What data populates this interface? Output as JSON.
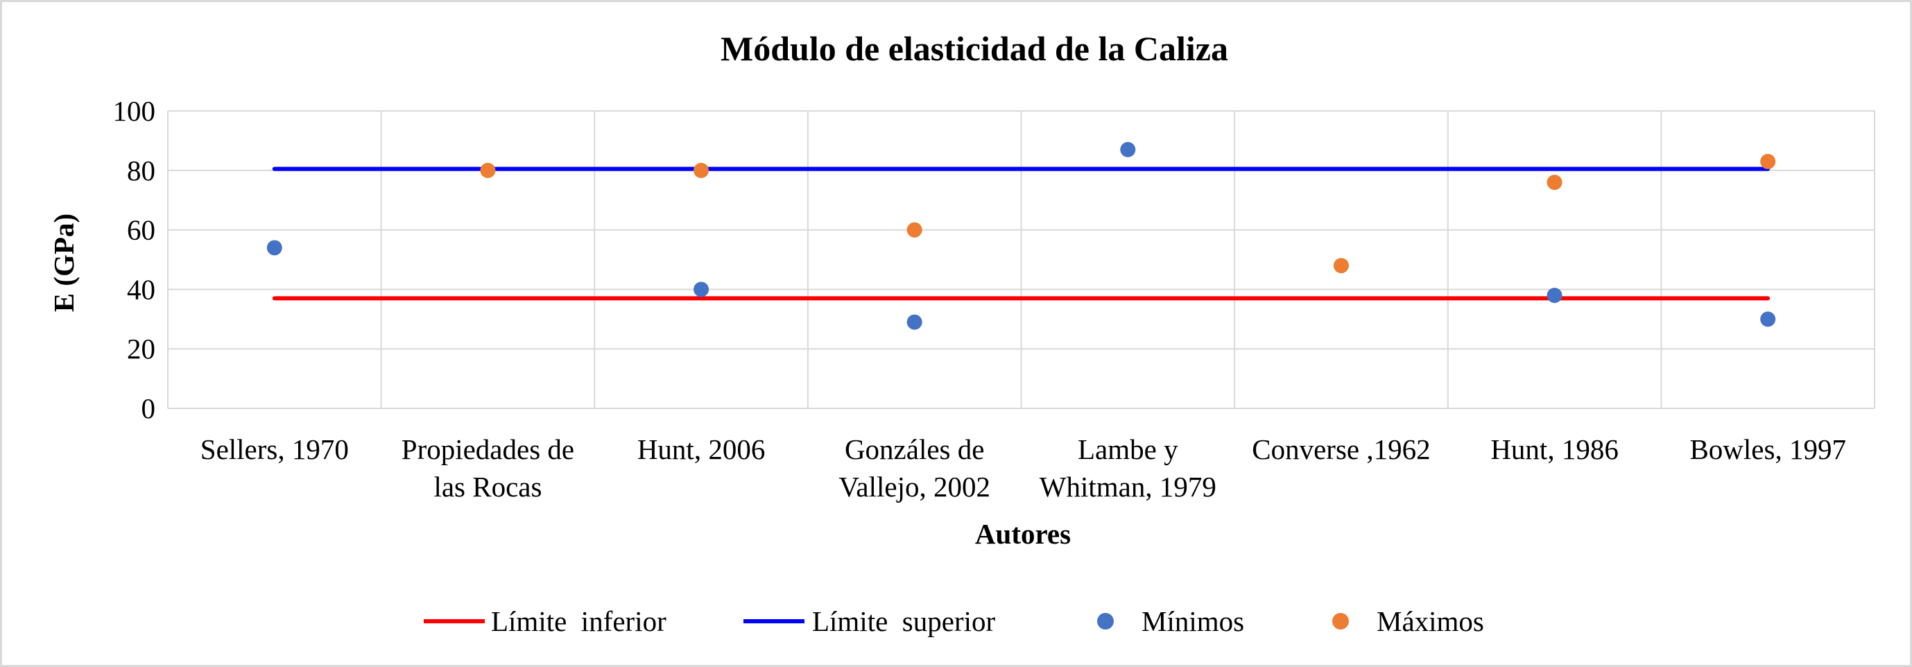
{
  "chart_data": {
    "type": "scatter",
    "title": "Módulo de elasticidad de la Caliza",
    "xlabel": "Autores",
    "ylabel": "E (GPa)",
    "ylim": [
      0,
      100
    ],
    "yticks": [
      "0",
      "20",
      "40",
      "60",
      "80",
      "100"
    ],
    "grid": true,
    "legend_position": "bottom",
    "categories": [
      [
        "Sellers, 1970"
      ],
      [
        "Propiedades de",
        "las Rocas"
      ],
      [
        "Hunt, 2006"
      ],
      [
        "Gonzáles de",
        "Vallejo, 2002"
      ],
      [
        "Lambe y",
        "Whitman, 1979"
      ],
      [
        "Converse ,1962"
      ],
      [
        "Hunt, 1986"
      ],
      [
        "Bowles, 1997"
      ]
    ],
    "series": [
      {
        "name": "Límite  inferior",
        "kind": "line",
        "color": "#ff0000",
        "x_range": [
          1,
          8
        ],
        "value": 37
      },
      {
        "name": "Límite  superior",
        "kind": "line",
        "color": "#0000ff",
        "x_range": [
          1,
          8
        ],
        "value": 80.5
      },
      {
        "name": "Mínimos",
        "kind": "points",
        "color": "#4472c4",
        "points": [
          {
            "x": 1,
            "y": 54
          },
          {
            "x": 3,
            "y": 40
          },
          {
            "x": 4,
            "y": 29
          },
          {
            "x": 5,
            "y": 87
          },
          {
            "x": 7,
            "y": 38
          },
          {
            "x": 8,
            "y": 30
          }
        ]
      },
      {
        "name": "Máximos",
        "kind": "points",
        "color": "#ed7d31",
        "points": [
          {
            "x": 2,
            "y": 80
          },
          {
            "x": 3,
            "y": 80
          },
          {
            "x": 4,
            "y": 60
          },
          {
            "x": 6,
            "y": 48
          },
          {
            "x": 7,
            "y": 76
          },
          {
            "x": 8,
            "y": 83
          }
        ]
      }
    ]
  }
}
